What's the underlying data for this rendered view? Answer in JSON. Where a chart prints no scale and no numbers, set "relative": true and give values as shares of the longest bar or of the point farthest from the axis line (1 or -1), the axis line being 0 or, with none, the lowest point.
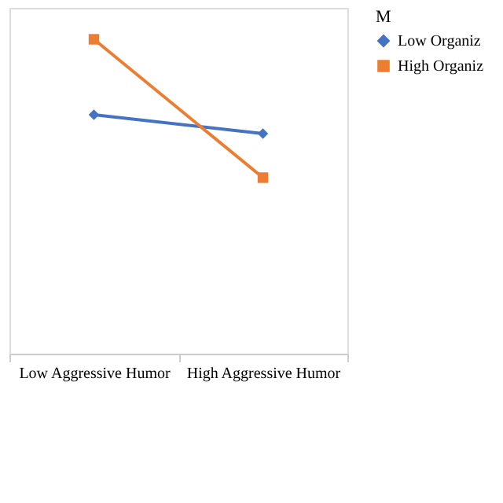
{
  "chart_data": {
    "type": "line",
    "relative": true,
    "categories": [
      "Low Aggressive Humor",
      "High Aggressive Humor"
    ],
    "legend_title": "M",
    "legend": "right",
    "grid": false,
    "series": [
      {
        "name": "Low Organiz",
        "color": "#4472c4",
        "marker": "diamond",
        "values": [
          0.76,
          0.7
        ]
      },
      {
        "name": "High Organiz",
        "color": "#ed7d31",
        "marker": "square",
        "values": [
          1,
          0.56
        ]
      }
    ]
  }
}
